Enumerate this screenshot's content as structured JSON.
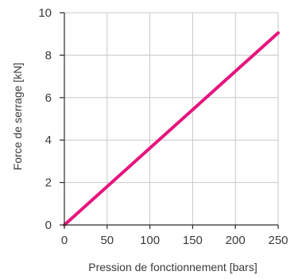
{
  "chart_data": {
    "type": "line",
    "title": "",
    "xlabel": "Pression de fonctionnement [bars]",
    "ylabel": "Force de serrage [kN]",
    "xlim": [
      0,
      250
    ],
    "ylim": [
      0,
      10
    ],
    "xticks": [
      0,
      50,
      100,
      150,
      200,
      250
    ],
    "yticks": [
      0,
      2,
      4,
      6,
      8,
      10
    ],
    "grid": true,
    "legend": "none",
    "series": [
      {
        "x": [
          0,
          250
        ],
        "y": [
          0,
          9.05
        ],
        "color": "#e6147d"
      }
    ],
    "colors": {
      "grid": "#c8c8c8",
      "axis": "#2b2b2b",
      "text": "#3a3a3a"
    }
  }
}
